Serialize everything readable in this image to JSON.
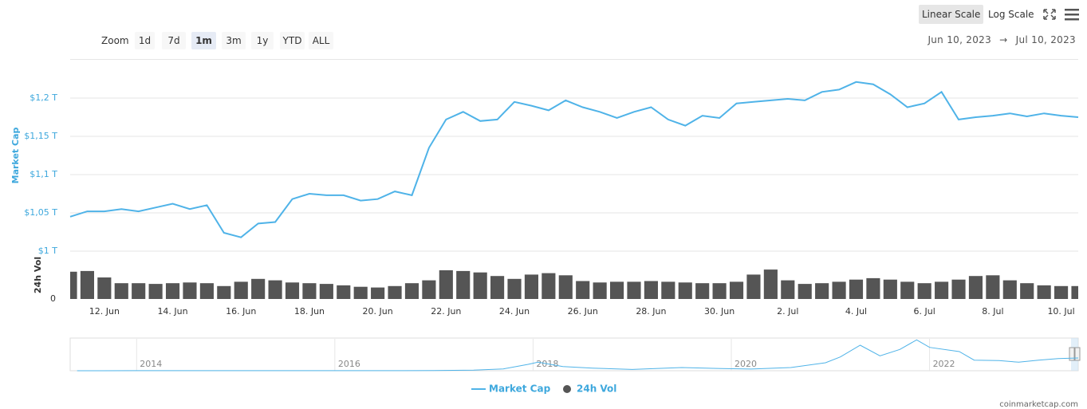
{
  "controls": {
    "zoom_label": "Zoom",
    "zoom_buttons": [
      "1d",
      "7d",
      "1m",
      "3m",
      "1y",
      "YTD",
      "ALL"
    ],
    "zoom_selected": "1m",
    "scale_buttons": [
      "Linear Scale",
      "Log Scale"
    ],
    "scale_selected": "Linear Scale",
    "date_from": "Jun 10, 2023",
    "date_arrow": "→",
    "date_to": "Jul 10, 2023",
    "credit": "coinmarketcap.com"
  },
  "chart_data": [
    {
      "type": "line",
      "y_label": "Market Cap",
      "categories": [
        null,
        null,
        "12. Jun",
        null,
        null,
        null,
        "14. Jun",
        null,
        null,
        null,
        "16. Jun",
        null,
        null,
        null,
        "18. Jun",
        null,
        null,
        null,
        "20. Jun",
        null,
        null,
        null,
        "22. Jun",
        null,
        null,
        null,
        "24. Jun",
        null,
        null,
        null,
        "26. Jun",
        null,
        null,
        null,
        "28. Jun",
        null,
        null,
        null,
        "30. Jun",
        null,
        null,
        null,
        "2. Jul",
        null,
        null,
        null,
        "4. Jul",
        null,
        null,
        null,
        "6. Jul",
        null,
        null,
        null,
        "8. Jul",
        null,
        null,
        null,
        "10. Jul",
        null
      ],
      "series": [
        {
          "name": "Market Cap",
          "color": "#4fb3e8",
          "values": [
            1.045,
            1.052,
            1.052,
            1.055,
            1.052,
            1.057,
            1.062,
            1.055,
            1.06,
            1.024,
            1.018,
            1.036,
            1.038,
            1.068,
            1.075,
            1.073,
            1.073,
            1.066,
            1.068,
            1.078,
            1.073,
            1.135,
            1.172,
            1.182,
            1.17,
            1.172,
            1.195,
            1.19,
            1.184,
            1.197,
            1.188,
            1.182,
            1.174,
            1.182,
            1.188,
            1.172,
            1.164,
            1.177,
            1.174,
            1.193,
            1.195,
            1.197,
            1.199,
            1.197,
            1.208,
            1.211,
            1.221,
            1.218,
            1.205,
            1.188,
            1.193,
            1.208,
            1.172,
            1.175,
            1.177,
            1.18,
            1.176,
            1.18,
            1.177,
            1.175
          ]
        }
      ],
      "ylim": [
        1,
        1.25
      ],
      "yticks": [
        {
          "value": 1,
          "label": "$1 T"
        },
        {
          "value": 1.05,
          "label": "$1,05 T"
        },
        {
          "value": 1.1,
          "label": "$1,1 T"
        },
        {
          "value": 1.15,
          "label": "$1,15 T"
        },
        {
          "value": 1.2,
          "label": "$1,2 T"
        }
      ],
      "grid": true
    },
    {
      "type": "bar",
      "y_label": "24h Vol",
      "series": [
        {
          "name": "24h Vol",
          "color": "#555555",
          "values": [
            38,
            39,
            30,
            22,
            22,
            21,
            22,
            23,
            22,
            18,
            24,
            28,
            26,
            23,
            22,
            21,
            19,
            17,
            16,
            18,
            22,
            26,
            40,
            39,
            37,
            32,
            28,
            34,
            36,
            33,
            25,
            23,
            24,
            24,
            25,
            24,
            23,
            22,
            22,
            24,
            34,
            41,
            26,
            21,
            22,
            24,
            27,
            29,
            27,
            24,
            22,
            24,
            27,
            32,
            33,
            26,
            22,
            19,
            18,
            18
          ]
        }
      ],
      "ylim": [
        0,
        50
      ],
      "yticks": [
        0
      ]
    },
    {
      "type": "line",
      "x": [
        2013.4,
        2014,
        2014.5,
        2015,
        2015.5,
        2016,
        2016.5,
        2017,
        2017.4,
        2017.7,
        2017.95,
        2018.05,
        2018.3,
        2018.6,
        2019,
        2019.5,
        2019.9,
        2020.2,
        2020.6,
        2020.95,
        2021.1,
        2021.3,
        2021.5,
        2021.7,
        2021.87,
        2022,
        2022.3,
        2022.45,
        2022.7,
        2022.9,
        2023.1,
        2023.3,
        2023.5
      ],
      "values": [
        0.002,
        0.01,
        0.008,
        0.005,
        0.004,
        0.007,
        0.01,
        0.018,
        0.06,
        0.17,
        0.6,
        0.8,
        0.4,
        0.25,
        0.12,
        0.3,
        0.2,
        0.16,
        0.3,
        0.75,
        1.3,
        2.4,
        1.4,
        2,
        2.9,
        2.2,
        1.8,
        1,
        0.95,
        0.8,
        1,
        1.15,
        1.2
      ],
      "color": "#4fb3e8",
      "xlim": [
        2013.33,
        2023.5
      ],
      "xticks": [
        2014,
        2016,
        2018,
        2020,
        2022
      ],
      "ylim": [
        0,
        3
      ]
    }
  ]
}
